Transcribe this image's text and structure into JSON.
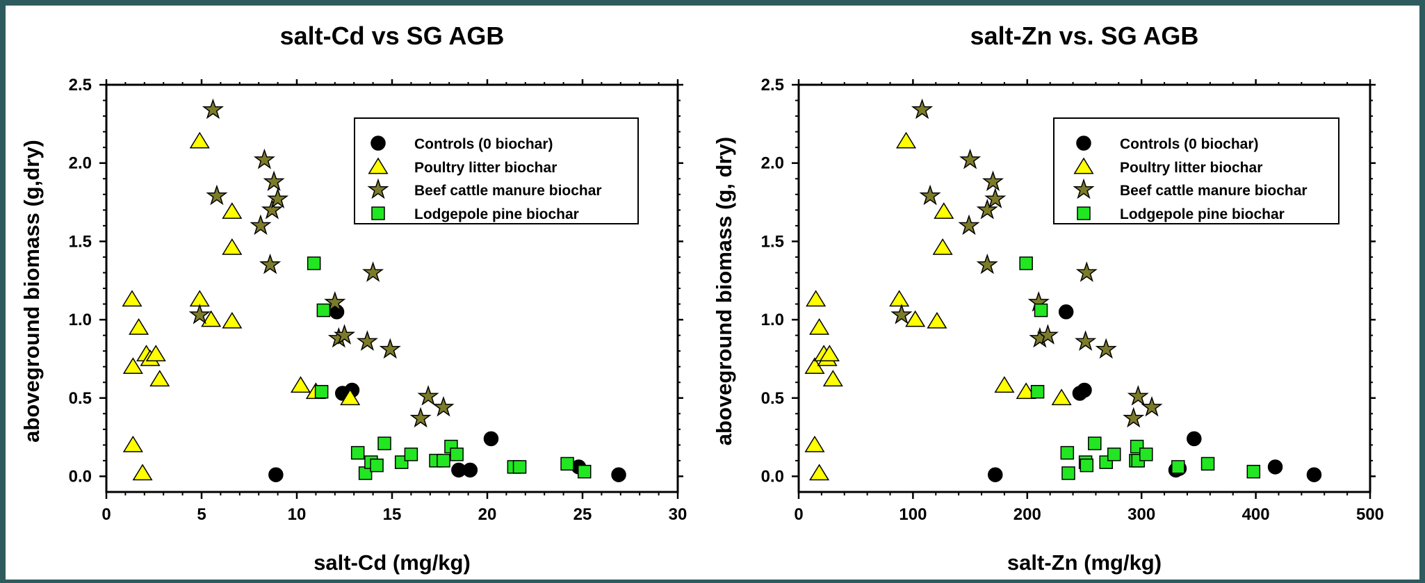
{
  "colors": {
    "controls": "#000000",
    "poultry": "#ffff00",
    "beef": "#7b7b2a",
    "pine": "#22e622",
    "background_frame": "#2e5b5e"
  },
  "chart_data": [
    {
      "type": "scatter",
      "title": "salt-Cd vs SG AGB",
      "xlabel": "salt-Cd (mg/kg)",
      "ylabel": "aboveground biomass (g,dry)",
      "xlim": [
        0,
        30
      ],
      "ylim": [
        -0.1,
        2.5
      ],
      "xticks": [
        0,
        5,
        10,
        15,
        20,
        25,
        30
      ],
      "yticks": [
        0.0,
        0.5,
        1.0,
        1.5,
        2.0,
        2.5
      ],
      "legend_position": "top-right",
      "series": [
        {
          "name": "Controls (0 biochar)",
          "marker": "circle",
          "points": [
            [
              8.9,
              0.01
            ],
            [
              12.1,
              1.05
            ],
            [
              12.4,
              0.53
            ],
            [
              12.9,
              0.55
            ],
            [
              18.5,
              0.04
            ],
            [
              19.1,
              0.04
            ],
            [
              20.2,
              0.24
            ],
            [
              24.8,
              0.06
            ],
            [
              26.9,
              0.01
            ]
          ]
        },
        {
          "name": "Poultry litter biochar",
          "marker": "triangle",
          "points": [
            [
              1.35,
              1.13
            ],
            [
              1.4,
              0.2
            ],
            [
              1.4,
              0.7
            ],
            [
              1.7,
              0.95
            ],
            [
              1.9,
              0.02
            ],
            [
              2.1,
              0.78
            ],
            [
              2.3,
              0.75
            ],
            [
              2.6,
              0.78
            ],
            [
              2.8,
              0.62
            ],
            [
              4.9,
              2.14
            ],
            [
              4.9,
              1.13
            ],
            [
              5.5,
              1.0
            ],
            [
              6.6,
              1.69
            ],
            [
              6.6,
              1.46
            ],
            [
              6.6,
              0.99
            ],
            [
              10.2,
              0.58
            ],
            [
              11.0,
              0.54
            ],
            [
              12.8,
              0.5
            ]
          ]
        },
        {
          "name": "Beef cattle manure biochar",
          "marker": "star",
          "points": [
            [
              5.6,
              2.34
            ],
            [
              5.8,
              1.79
            ],
            [
              4.9,
              1.03
            ],
            [
              8.1,
              1.6
            ],
            [
              8.3,
              2.02
            ],
            [
              8.7,
              1.7
            ],
            [
              8.8,
              1.88
            ],
            [
              9.0,
              1.77
            ],
            [
              8.6,
              1.35
            ],
            [
              12.0,
              1.11
            ],
            [
              12.2,
              0.88
            ],
            [
              12.5,
              0.9
            ],
            [
              14.0,
              1.3
            ],
            [
              13.7,
              0.86
            ],
            [
              14.9,
              0.81
            ],
            [
              16.5,
              0.37
            ],
            [
              16.9,
              0.51
            ],
            [
              17.7,
              0.44
            ]
          ]
        },
        {
          "name": "Lodgepole pine biochar",
          "marker": "square",
          "points": [
            [
              10.9,
              1.36
            ],
            [
              11.4,
              1.06
            ],
            [
              11.3,
              0.54
            ],
            [
              13.2,
              0.15
            ],
            [
              13.6,
              0.02
            ],
            [
              13.9,
              0.09
            ],
            [
              14.2,
              0.07
            ],
            [
              14.6,
              0.21
            ],
            [
              15.5,
              0.09
            ],
            [
              16.0,
              0.14
            ],
            [
              17.3,
              0.1
            ],
            [
              17.7,
              0.1
            ],
            [
              18.1,
              0.19
            ],
            [
              18.4,
              0.14
            ],
            [
              21.4,
              0.06
            ],
            [
              21.7,
              0.06
            ],
            [
              24.2,
              0.08
            ],
            [
              25.1,
              0.03
            ]
          ]
        }
      ]
    },
    {
      "type": "scatter",
      "title": "salt-Zn vs. SG AGB",
      "xlabel": "salt-Zn (mg/kg)",
      "ylabel": "aboveground biomass (g, dry)",
      "xlim": [
        0,
        500
      ],
      "ylim": [
        -0.1,
        2.5
      ],
      "xticks": [
        0,
        100,
        200,
        300,
        400,
        500
      ],
      "yticks": [
        0.0,
        0.5,
        1.0,
        1.5,
        2.0,
        2.5
      ],
      "legend_position": "top-right",
      "series": [
        {
          "name": "Controls (0 biochar)",
          "marker": "circle",
          "points": [
            [
              172,
              0.01
            ],
            [
              234,
              1.05
            ],
            [
              246,
              0.53
            ],
            [
              250,
              0.55
            ],
            [
              330,
              0.04
            ],
            [
              333,
              0.05
            ],
            [
              346,
              0.24
            ],
            [
              417,
              0.06
            ],
            [
              451,
              0.01
            ]
          ]
        },
        {
          "name": "Poultry litter biochar",
          "marker": "triangle",
          "points": [
            [
              15,
              1.13
            ],
            [
              14,
              0.2
            ],
            [
              14,
              0.7
            ],
            [
              18,
              0.95
            ],
            [
              18,
              0.02
            ],
            [
              22,
              0.78
            ],
            [
              25,
              0.75
            ],
            [
              27,
              0.78
            ],
            [
              30,
              0.62
            ],
            [
              88,
              1.13
            ],
            [
              94,
              2.14
            ],
            [
              102,
              1.0
            ],
            [
              121,
              0.99
            ],
            [
              126,
              1.46
            ],
            [
              127,
              1.69
            ],
            [
              180,
              0.58
            ],
            [
              199,
              0.54
            ],
            [
              230,
              0.5
            ]
          ]
        },
        {
          "name": "Beef cattle manure biochar",
          "marker": "star",
          "points": [
            [
              108,
              2.34
            ],
            [
              90,
              1.03
            ],
            [
              115,
              1.79
            ],
            [
              149,
              1.6
            ],
            [
              150,
              2.02
            ],
            [
              165,
              1.35
            ],
            [
              165,
              1.7
            ],
            [
              170,
              1.88
            ],
            [
              172,
              1.77
            ],
            [
              210,
              1.11
            ],
            [
              211,
              0.88
            ],
            [
              218,
              0.9
            ],
            [
              252,
              1.3
            ],
            [
              251,
              0.86
            ],
            [
              269,
              0.81
            ],
            [
              293,
              0.37
            ],
            [
              297,
              0.51
            ],
            [
              309,
              0.44
            ]
          ]
        },
        {
          "name": "Lodgepole pine biochar",
          "marker": "square",
          "points": [
            [
              199,
              1.36
            ],
            [
              209,
              0.54
            ],
            [
              212,
              1.06
            ],
            [
              235,
              0.15
            ],
            [
              236,
              0.02
            ],
            [
              251,
              0.09
            ],
            [
              252,
              0.07
            ],
            [
              259,
              0.21
            ],
            [
              269,
              0.09
            ],
            [
              276,
              0.14
            ],
            [
              295,
              0.1
            ],
            [
              296,
              0.19
            ],
            [
              297,
              0.1
            ],
            [
              304,
              0.14
            ],
            [
              332,
              0.06
            ],
            [
              358,
              0.08
            ],
            [
              398,
              0.03
            ]
          ]
        }
      ]
    }
  ]
}
